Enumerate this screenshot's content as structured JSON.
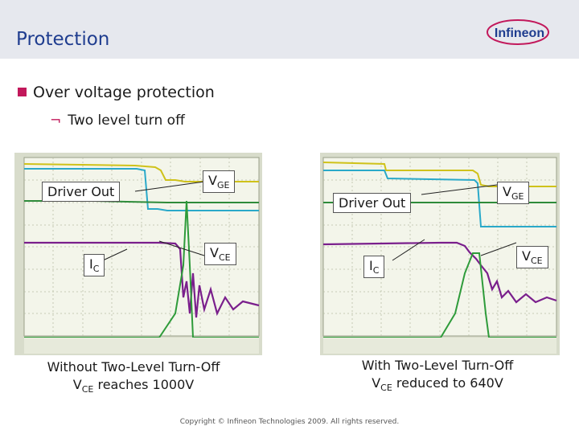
{
  "header": {
    "title": "Protection",
    "logo_text": "Infineon",
    "colors": {
      "bar": "#e6e8ee",
      "title": "#1f3d8f",
      "accent": "#c2185b"
    }
  },
  "bullets": {
    "level1": "Over voltage protection",
    "level2": "Two level turn off"
  },
  "scopes": {
    "left": {
      "driver_out": "Driver Out",
      "vge_main": "V",
      "vge_sub": "GE",
      "vce_main": "V",
      "vce_sub": "CE",
      "ic_main": "I",
      "ic_sub": "C"
    },
    "right": {
      "driver_out": "Driver Out",
      "vge_main": "V",
      "vge_sub": "GE",
      "vce_main": "V",
      "vce_sub": "CE",
      "ic_main": "I",
      "ic_sub": "C"
    }
  },
  "captions": {
    "left_line1": "Without Two-Level Turn-Off",
    "left_v": "V",
    "left_sub": "CE",
    "left_rest": " reaches 1000V",
    "right_line1": "With Two-Level Turn-Off",
    "right_v": "V",
    "right_sub": "CE",
    "right_rest": " reduced to 640V"
  },
  "footer": {
    "copyright": "Copyright © Infineon Technologies 2009. All rights reserved."
  }
}
